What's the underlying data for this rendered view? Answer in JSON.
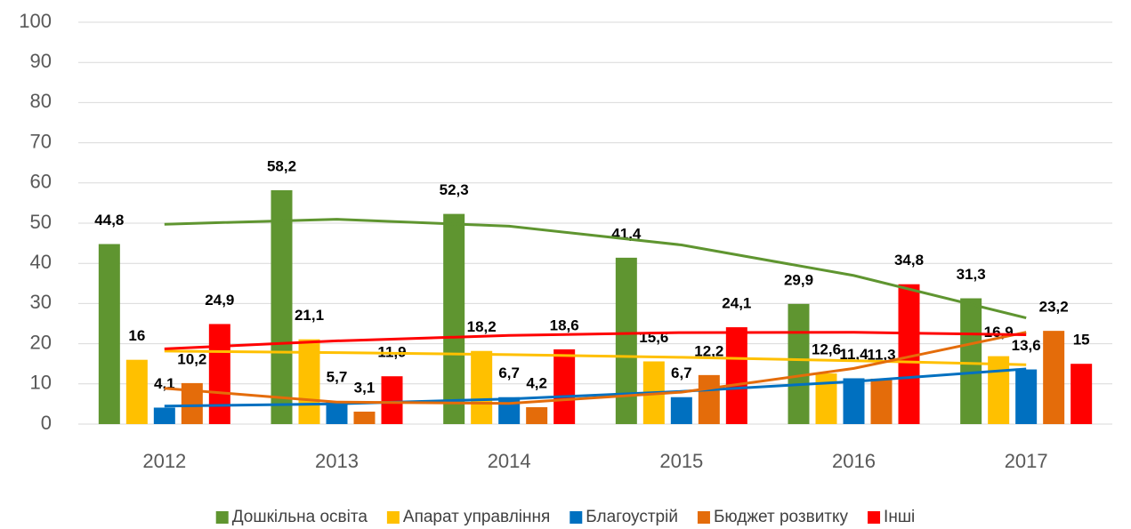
{
  "chart_data": {
    "type": "bar",
    "categories": [
      "2012",
      "2013",
      "2014",
      "2015",
      "2016",
      "2017"
    ],
    "series": [
      {
        "name": "Дошкільна освіта",
        "color": "#5f9530",
        "values": [
          44.8,
          58.2,
          52.3,
          41.4,
          29.9,
          31.3
        ],
        "value_labels": [
          "44,8",
          "58,2",
          "52,3",
          "41,4",
          "29,9",
          "31,3"
        ]
      },
      {
        "name": "Апарат управління",
        "color": "#ffc000",
        "values": [
          16,
          21.1,
          18.2,
          15.6,
          12.6,
          16.9
        ],
        "value_labels": [
          "16",
          "21,1",
          "18,2",
          "15,6",
          "12,6",
          "16,9"
        ]
      },
      {
        "name": "Благоустрій",
        "color": "#0070c0",
        "values": [
          4.1,
          5.7,
          6.7,
          6.7,
          11.4,
          13.6
        ],
        "value_labels": [
          "4,1",
          "5,7",
          "6,7",
          "6,7",
          "11,4",
          "13,6"
        ]
      },
      {
        "name": "Бюджет розвитку",
        "color": "#e46c0a",
        "values": [
          10.2,
          3.1,
          4.2,
          12.2,
          11.3,
          23.2
        ],
        "value_labels": [
          "10,2",
          "3,1",
          "4,2",
          "12,2",
          "11,3",
          "23,2"
        ]
      },
      {
        "name": "Інші",
        "color": "#ff0000",
        "values": [
          24.9,
          11.9,
          18.6,
          24.1,
          34.8,
          15
        ],
        "value_labels": [
          "24,9",
          "11,9",
          "18,6",
          "24,1",
          "34,8",
          "15"
        ]
      }
    ],
    "ylim": [
      0,
      100
    ],
    "yticks": [
      0,
      10,
      20,
      30,
      40,
      50,
      60,
      70,
      80,
      90,
      100
    ],
    "grid": true,
    "legend": "bottom",
    "trendline": "polynomial"
  }
}
